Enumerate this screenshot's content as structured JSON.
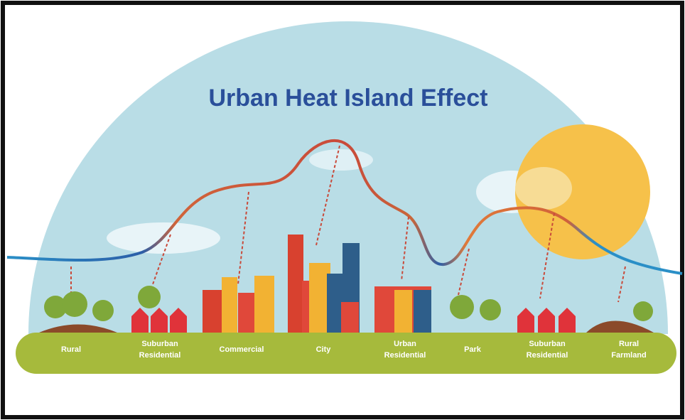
{
  "title": "Urban Heat Island Effect",
  "zones": [
    {
      "lines": [
        "Rural"
      ]
    },
    {
      "lines": [
        "Suburban",
        "Residential"
      ]
    },
    {
      "lines": [
        "Commercial"
      ]
    },
    {
      "lines": [
        "City"
      ]
    },
    {
      "lines": [
        "Urban",
        "Residential"
      ]
    },
    {
      "lines": [
        "Park"
      ]
    },
    {
      "lines": [
        "Suburban",
        "Residential"
      ]
    },
    {
      "lines": [
        "Rural",
        "Farmland"
      ]
    }
  ]
}
